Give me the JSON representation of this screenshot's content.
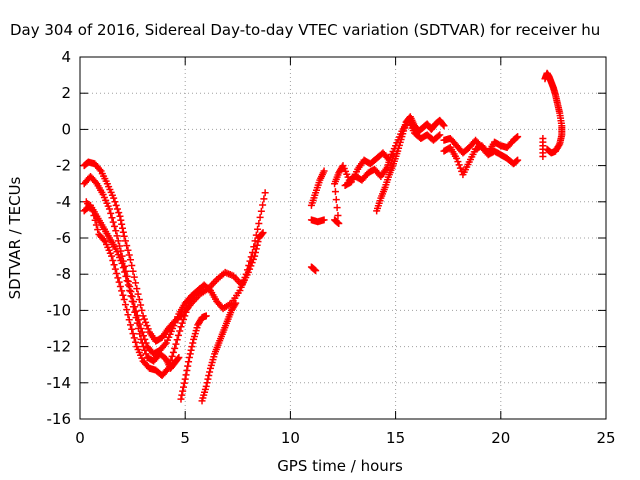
{
  "chart_data": {
    "type": "scatter",
    "title": "Day 304 of 2016, Sidereal Day-to-day VTEC variation (SDTVAR) for receiver hu",
    "xlabel": "GPS time / hours",
    "ylabel": "SDTVAR / TECUs",
    "xlim": [
      0,
      25
    ],
    "ylim": [
      -16,
      4
    ],
    "xticks": [
      "0",
      "5",
      "10",
      "15",
      "20",
      "25"
    ],
    "yticks": [
      "4",
      "2",
      "0",
      "-2",
      "-4",
      "-6",
      "-8",
      "-10",
      "-12",
      "-14",
      "-16"
    ],
    "grid": true,
    "legend": "none",
    "marker": "+",
    "marker_color": "#ff0000",
    "series": [
      {
        "values": [
          [
            0.2,
            -2
          ],
          [
            0.4,
            -1.8
          ],
          [
            0.7,
            -1.9
          ],
          [
            1.0,
            -2.3
          ],
          [
            1.3,
            -3.0
          ],
          [
            1.6,
            -3.8
          ],
          [
            1.9,
            -4.8
          ],
          [
            2.1,
            -5.9
          ],
          [
            2.4,
            -7.2
          ],
          [
            2.7,
            -8.8
          ],
          [
            3.0,
            -10.3
          ],
          [
            3.3,
            -11.2
          ],
          [
            3.6,
            -11.7
          ],
          [
            3.9,
            -11.5
          ],
          [
            4.2,
            -11.0
          ],
          [
            4.5,
            -10.6
          ],
          [
            4.9,
            -10.2
          ],
          [
            5.3,
            -9.6
          ],
          [
            5.7,
            -9.1
          ],
          [
            6.1,
            -8.8
          ],
          [
            6.5,
            -8.3
          ],
          [
            6.9,
            -7.9
          ],
          [
            7.3,
            -8.1
          ],
          [
            7.7,
            -8.6
          ],
          [
            8.0,
            -7.9
          ],
          [
            8.3,
            -7.0
          ],
          [
            8.5,
            -6.0
          ],
          [
            8.7,
            -5.7
          ]
        ]
      },
      {
        "values": [
          [
            0.2,
            -3
          ],
          [
            0.5,
            -2.6
          ],
          [
            0.8,
            -3.0
          ],
          [
            1.1,
            -3.6
          ],
          [
            1.4,
            -4.4
          ],
          [
            1.7,
            -5.6
          ],
          [
            2.0,
            -7.0
          ],
          [
            2.3,
            -8.4
          ],
          [
            2.6,
            -9.8
          ],
          [
            2.9,
            -11.0
          ],
          [
            3.2,
            -12.0
          ],
          [
            3.5,
            -12.4
          ],
          [
            3.8,
            -12.2
          ],
          [
            4.1,
            -11.8
          ],
          [
            4.4,
            -11.0
          ],
          [
            4.7,
            -10.2
          ],
          [
            5.0,
            -9.6
          ],
          [
            5.3,
            -9.2
          ],
          [
            5.6,
            -8.9
          ],
          [
            5.9,
            -8.6
          ],
          [
            6.2,
            -8.9
          ],
          [
            6.5,
            -9.5
          ],
          [
            6.8,
            -9.9
          ],
          [
            7.2,
            -9.6
          ],
          [
            7.6,
            -8.9
          ],
          [
            7.9,
            -8.0
          ],
          [
            8.2,
            -6.8
          ],
          [
            8.5,
            -5.2
          ],
          [
            8.8,
            -3.5
          ]
        ]
      },
      {
        "values": [
          [
            0.2,
            -4.5
          ],
          [
            0.5,
            -4.2
          ],
          [
            0.8,
            -4.8
          ],
          [
            1.1,
            -5.4
          ],
          [
            1.4,
            -6.0
          ],
          [
            1.7,
            -6.6
          ],
          [
            2.0,
            -7.4
          ],
          [
            2.3,
            -8.6
          ],
          [
            2.6,
            -10.1
          ],
          [
            2.9,
            -11.6
          ],
          [
            3.2,
            -12.6
          ],
          [
            3.5,
            -12.8
          ],
          [
            3.8,
            -12.4
          ],
          [
            4.1,
            -12.7
          ],
          [
            4.3,
            -13.2
          ],
          [
            4.5,
            -12.9
          ],
          [
            4.7,
            -12.6
          ]
        ]
      },
      {
        "values": [
          [
            0.3,
            -4.0
          ],
          [
            0.6,
            -4.5
          ],
          [
            0.9,
            -5.8
          ],
          [
            1.2,
            -6.2
          ],
          [
            1.5,
            -7.0
          ],
          [
            1.8,
            -8.2
          ],
          [
            2.1,
            -9.4
          ],
          [
            2.4,
            -10.8
          ],
          [
            2.7,
            -12.0
          ],
          [
            3.0,
            -12.8
          ],
          [
            3.3,
            -13.2
          ],
          [
            3.6,
            -13.3
          ],
          [
            3.9,
            -13.6
          ],
          [
            4.2,
            -13.2
          ],
          [
            4.5,
            -12.1
          ],
          [
            4.8,
            -10.9
          ],
          [
            5.1,
            -9.9
          ],
          [
            5.4,
            -9.2
          ],
          [
            5.7,
            -8.8
          ]
        ]
      },
      {
        "values": [
          [
            4.8,
            -14.9
          ],
          [
            5.0,
            -13.8
          ],
          [
            5.2,
            -12.6
          ],
          [
            5.4,
            -11.6
          ],
          [
            5.6,
            -10.8
          ],
          [
            5.8,
            -10.4
          ],
          [
            6.0,
            -10.3
          ]
        ]
      },
      {
        "values": [
          [
            5.8,
            -15.0
          ],
          [
            6.0,
            -14.2
          ],
          [
            6.2,
            -13.2
          ],
          [
            6.4,
            -12.4
          ],
          [
            6.6,
            -11.8
          ],
          [
            6.8,
            -11.2
          ],
          [
            7.0,
            -10.6
          ],
          [
            7.2,
            -10.0
          ],
          [
            7.4,
            -9.6
          ]
        ]
      },
      {
        "values": [
          [
            11.0,
            -4.2
          ],
          [
            11.2,
            -3.5
          ],
          [
            11.4,
            -2.8
          ],
          [
            11.6,
            -2.3
          ],
          [
            11.0,
            -7.6
          ],
          [
            11.2,
            -7.8
          ],
          [
            11.0,
            -5.0
          ],
          [
            11.3,
            -5.1
          ],
          [
            11.6,
            -5.0
          ]
        ]
      },
      {
        "values": [
          [
            12.1,
            -5.0
          ],
          [
            12.3,
            -5.2
          ],
          [
            12.1,
            -3.0
          ],
          [
            12.3,
            -2.4
          ],
          [
            12.5,
            -2.0
          ],
          [
            12.8,
            -2.8
          ],
          [
            13.1,
            -2.6
          ],
          [
            13.4,
            -2.8
          ],
          [
            13.7,
            -2.4
          ],
          [
            14.0,
            -2.2
          ],
          [
            14.3,
            -2.6
          ],
          [
            14.6,
            -2.1
          ],
          [
            14.8,
            -1.4
          ]
        ]
      },
      {
        "values": [
          [
            14.1,
            -4.5
          ],
          [
            14.3,
            -3.8
          ],
          [
            14.5,
            -3.2
          ],
          [
            14.7,
            -2.5
          ],
          [
            14.9,
            -1.9
          ],
          [
            15.1,
            -1.2
          ],
          [
            15.3,
            -0.4
          ],
          [
            15.5,
            0.4
          ],
          [
            15.7,
            0.7
          ],
          [
            15.9,
            0.2
          ],
          [
            16.1,
            -0.1
          ],
          [
            16.3,
            0.1
          ],
          [
            16.5,
            0.3
          ],
          [
            16.7,
            0.0
          ],
          [
            16.9,
            0.3
          ],
          [
            17.1,
            0.5
          ],
          [
            17.3,
            0.2
          ]
        ]
      },
      {
        "values": [
          [
            12.6,
            -3.1
          ],
          [
            12.9,
            -2.9
          ],
          [
            13.2,
            -2.2
          ],
          [
            13.5,
            -1.7
          ],
          [
            13.8,
            -1.9
          ],
          [
            14.1,
            -1.6
          ],
          [
            14.4,
            -1.3
          ],
          [
            14.7,
            -1.7
          ],
          [
            15.0,
            -0.9
          ],
          [
            15.3,
            -0.1
          ],
          [
            15.6,
            0.5
          ],
          [
            15.9,
            -0.2
          ],
          [
            16.2,
            -0.5
          ],
          [
            16.5,
            -0.3
          ],
          [
            16.8,
            -0.6
          ],
          [
            17.1,
            -0.3
          ]
        ]
      },
      {
        "values": [
          [
            17.3,
            -1.2
          ],
          [
            17.6,
            -1.0
          ],
          [
            17.9,
            -1.6
          ],
          [
            18.2,
            -2.5
          ],
          [
            18.5,
            -1.8
          ],
          [
            18.8,
            -1.1
          ],
          [
            19.1,
            -0.9
          ],
          [
            19.4,
            -1.3
          ],
          [
            19.7,
            -0.7
          ],
          [
            20.0,
            -0.9
          ],
          [
            20.3,
            -1.0
          ],
          [
            20.6,
            -0.6
          ],
          [
            20.8,
            -0.4
          ]
        ]
      },
      {
        "values": [
          [
            17.3,
            -0.6
          ],
          [
            17.6,
            -0.5
          ],
          [
            17.9,
            -0.9
          ],
          [
            18.2,
            -1.3
          ],
          [
            18.5,
            -1.0
          ],
          [
            18.8,
            -0.6
          ],
          [
            19.1,
            -1.0
          ],
          [
            19.4,
            -1.4
          ],
          [
            19.7,
            -1.2
          ],
          [
            20.0,
            -1.4
          ],
          [
            20.3,
            -1.6
          ],
          [
            20.6,
            -1.9
          ],
          [
            20.8,
            -1.7
          ]
        ]
      },
      {
        "values": [
          [
            22.0,
            -1.5
          ],
          [
            22.0,
            -0.5
          ],
          [
            22.1,
            2.8
          ],
          [
            22.2,
            3.1
          ],
          [
            22.3,
            2.9
          ],
          [
            22.4,
            2.6
          ],
          [
            22.5,
            2.3
          ],
          [
            22.6,
            1.9
          ],
          [
            22.7,
            1.4
          ],
          [
            22.8,
            0.9
          ],
          [
            22.9,
            0.2
          ],
          [
            22.9,
            -0.3
          ],
          [
            22.8,
            -0.8
          ],
          [
            22.6,
            -1.2
          ],
          [
            22.4,
            -1.3
          ],
          [
            22.2,
            -1.1
          ]
        ]
      }
    ]
  }
}
